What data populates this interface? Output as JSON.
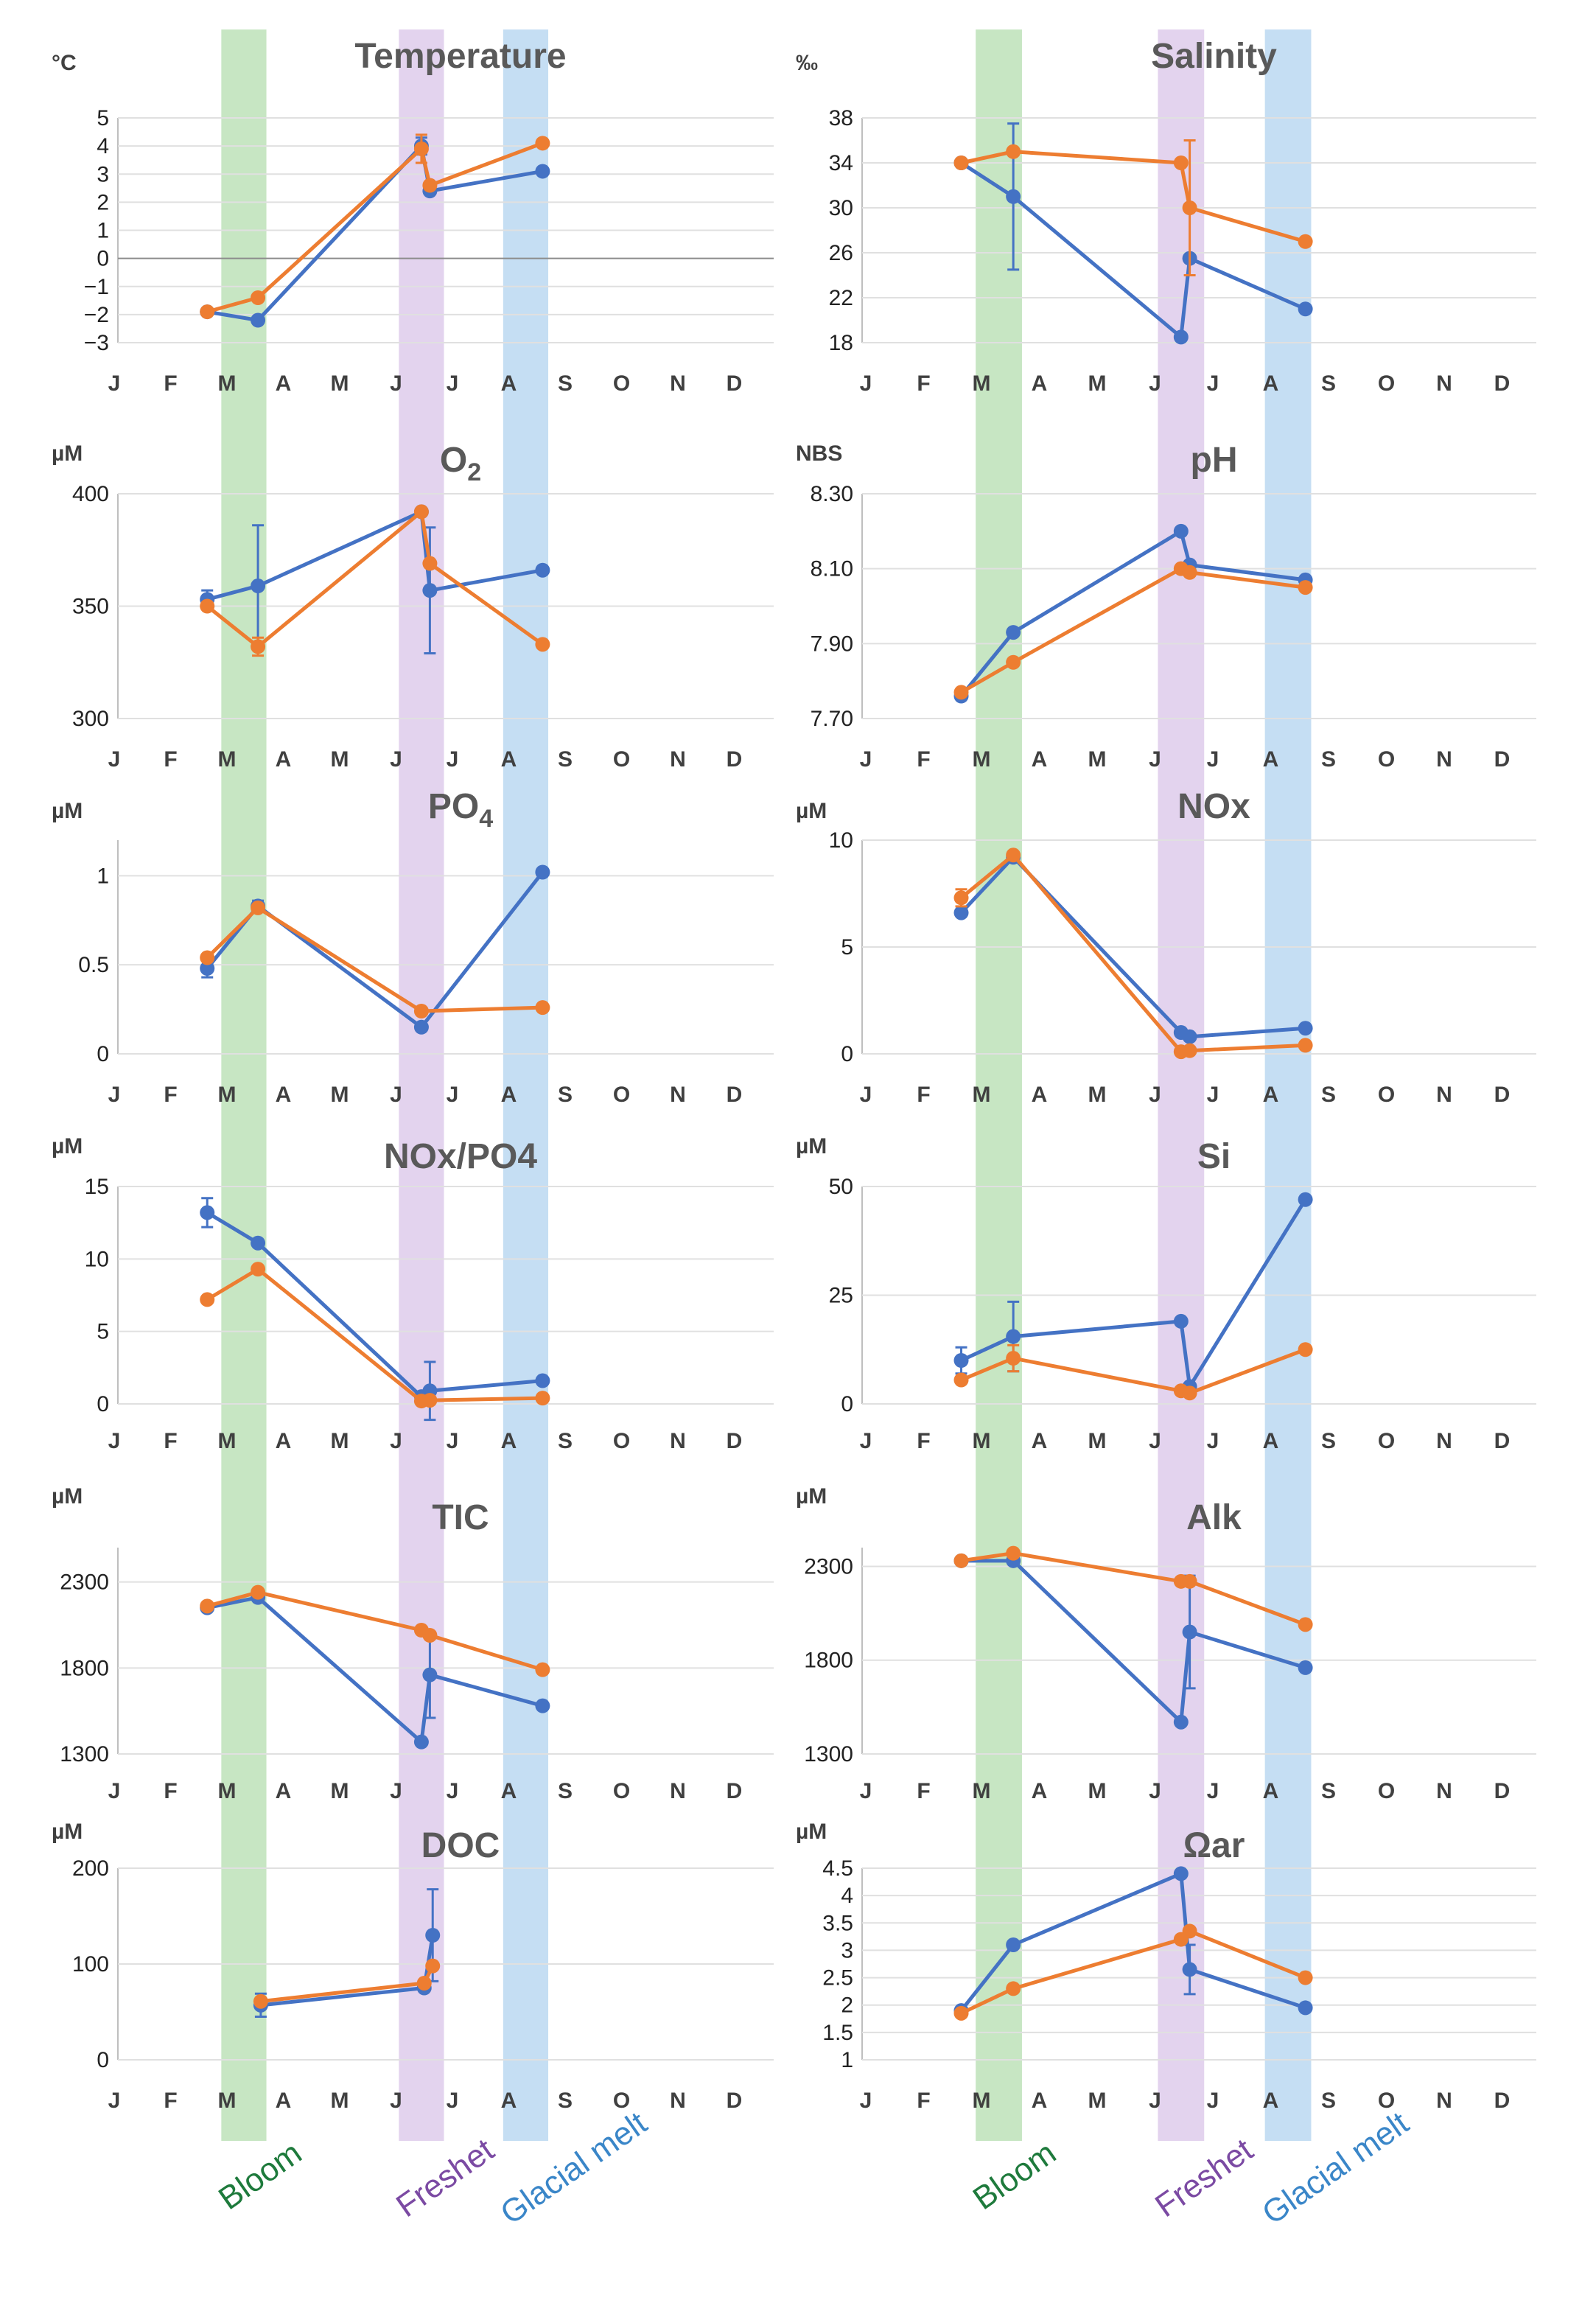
{
  "months": [
    "J",
    "F",
    "M",
    "A",
    "M",
    "J",
    "J",
    "A",
    "S",
    "O",
    "N",
    "D"
  ],
  "seasons": [
    {
      "name": "Bloom",
      "color": "#1e7a3c",
      "band": "#c7e6c3",
      "month_start": 1.9,
      "month_end": 2.7
    },
    {
      "name": "Freshet",
      "color": "#7b4aa3",
      "band": "#e3d3ee",
      "month_start": 5.05,
      "month_end": 5.85
    },
    {
      "name": "Glacial melt",
      "color": "#3a86c8",
      "band": "#c5def3",
      "month_start": 6.9,
      "month_end": 7.7
    }
  ],
  "series_colors": {
    "blue": "#4472c4",
    "orange": "#ed7d31",
    "teal": "#1f8a8a"
  },
  "chart_data": [
    {
      "type": "line",
      "title": "Temperature",
      "unit": "°C",
      "ylim": [
        -3,
        5
      ],
      "yticks": [
        -3,
        -2,
        -1,
        0,
        1,
        2,
        3,
        4,
        5
      ],
      "ytick_labels": [
        "−3",
        "−2",
        "−1",
        "0",
        "1",
        "2",
        "3",
        "4",
        "5"
      ],
      "zero_line": true,
      "series": [
        {
          "name": "blue",
          "x": [
            1.65,
            2.55,
            5.45,
            5.6,
            7.6
          ],
          "values": [
            -1.9,
            -2.2,
            4.0,
            2.4,
            3.1
          ],
          "errors": [
            0,
            0,
            0.3,
            0,
            0
          ]
        },
        {
          "name": "orange",
          "x": [
            1.65,
            2.55,
            5.45,
            5.6,
            7.6
          ],
          "values": [
            -1.9,
            -1.4,
            3.9,
            2.6,
            4.1
          ],
          "errors": [
            0,
            0,
            0.5,
            0,
            0
          ]
        }
      ]
    },
    {
      "type": "line",
      "title": "Salinity",
      "unit": "‰",
      "ylim": [
        18,
        38
      ],
      "yticks": [
        18,
        22,
        26,
        30,
        34,
        38
      ],
      "ytick_labels": [
        "18",
        "22",
        "26",
        "30",
        "34",
        "38"
      ],
      "series": [
        {
          "name": "blue",
          "x": [
            1.65,
            2.55,
            5.45,
            5.6,
            7.6
          ],
          "values": [
            34,
            31,
            18.5,
            25.5,
            21
          ],
          "errors": [
            0,
            6.5,
            0,
            0,
            0
          ]
        },
        {
          "name": "orange",
          "x": [
            1.65,
            2.55,
            5.45,
            5.6,
            7.6
          ],
          "values": [
            34,
            35,
            34,
            30,
            27
          ],
          "errors": [
            0,
            0,
            0,
            6,
            0
          ]
        }
      ]
    },
    {
      "type": "line",
      "title": "O2",
      "subscript": "2",
      "unit": "µM",
      "ylim": [
        300,
        400
      ],
      "yticks": [
        300,
        350,
        400
      ],
      "ytick_labels": [
        "300",
        "350",
        "400"
      ],
      "series": [
        {
          "name": "blue",
          "x": [
            1.65,
            2.55,
            5.45,
            5.6,
            7.6
          ],
          "values": [
            353,
            359,
            392,
            357,
            366
          ],
          "errors": [
            4,
            27,
            0,
            28,
            0
          ]
        },
        {
          "name": "orange",
          "x": [
            1.65,
            2.55,
            5.45,
            5.6,
            7.6
          ],
          "values": [
            350,
            332,
            392,
            369,
            333
          ],
          "errors": [
            0,
            4,
            0,
            0,
            0
          ]
        }
      ]
    },
    {
      "type": "line",
      "title": "pH",
      "unit": "NBS",
      "ylim": [
        7.7,
        8.3
      ],
      "yticks": [
        7.7,
        7.9,
        8.1,
        8.3
      ],
      "ytick_labels": [
        "7.70",
        "7.90",
        "8.10",
        "8.30"
      ],
      "series": [
        {
          "name": "blue",
          "x": [
            1.65,
            2.55,
            5.45,
            5.6,
            7.6
          ],
          "values": [
            7.76,
            7.93,
            8.2,
            8.11,
            8.07
          ],
          "errors": [
            0,
            0,
            0,
            0,
            0
          ]
        },
        {
          "name": "orange",
          "x": [
            1.65,
            2.55,
            5.45,
            5.6,
            7.6
          ],
          "values": [
            7.77,
            7.85,
            8.1,
            8.09,
            8.05
          ],
          "errors": [
            0,
            0,
            0,
            0,
            0
          ]
        }
      ]
    },
    {
      "type": "line",
      "title": "PO4",
      "subscript": "4",
      "unit": "µM",
      "ylim": [
        0,
        1.2
      ],
      "yticks": [
        0,
        0.5,
        1
      ],
      "ytick_labels": [
        "0",
        "0.5",
        "1"
      ],
      "series": [
        {
          "name": "blue",
          "x": [
            1.65,
            2.55,
            5.45,
            7.6
          ],
          "values": [
            0.48,
            0.83,
            0.15,
            1.02
          ],
          "errors": [
            0.05,
            0.03,
            0,
            0
          ]
        },
        {
          "name": "orange",
          "x": [
            1.65,
            2.55,
            5.45,
            7.6
          ],
          "values": [
            0.54,
            0.82,
            0.24,
            0.26
          ],
          "errors": [
            0,
            0,
            0,
            0
          ]
        }
      ]
    },
    {
      "type": "line",
      "title": "NOx",
      "unit": "µM",
      "ylim": [
        0,
        10
      ],
      "yticks": [
        0,
        5,
        10
      ],
      "ytick_labels": [
        "0",
        "5",
        "10"
      ],
      "series": [
        {
          "name": "blue",
          "x": [
            1.65,
            2.55,
            5.45,
            5.6,
            7.6
          ],
          "values": [
            6.6,
            9.2,
            1.0,
            0.8,
            1.2
          ],
          "errors": [
            0,
            0,
            0,
            0,
            0
          ]
        },
        {
          "name": "orange",
          "x": [
            1.65,
            2.55,
            5.45,
            5.6,
            7.6
          ],
          "values": [
            7.3,
            9.3,
            0.1,
            0.15,
            0.4
          ],
          "errors": [
            0.4,
            0,
            0,
            0,
            0
          ]
        }
      ]
    },
    {
      "type": "line",
      "title": "NOx/PO4",
      "unit": "µM",
      "ylim": [
        0,
        15
      ],
      "yticks": [
        0,
        5,
        10,
        15
      ],
      "ytick_labels": [
        "0",
        "5",
        "10",
        "15"
      ],
      "series": [
        {
          "name": "blue",
          "x": [
            1.65,
            2.55,
            5.45,
            5.6,
            7.6
          ],
          "values": [
            13.2,
            11.1,
            0.5,
            0.9,
            1.6
          ],
          "errors": [
            1.0,
            0,
            0,
            2.0,
            0
          ]
        },
        {
          "name": "orange",
          "x": [
            1.65,
            2.55,
            5.45,
            5.6,
            7.6
          ],
          "values": [
            7.2,
            9.3,
            0.2,
            0.25,
            0.4
          ],
          "errors": [
            0,
            0,
            0,
            0,
            0
          ]
        }
      ]
    },
    {
      "type": "line",
      "title": "Si",
      "unit": "µM",
      "ylim": [
        0,
        50
      ],
      "yticks": [
        0,
        25,
        50
      ],
      "ytick_labels": [
        "0",
        "25",
        "50"
      ],
      "series": [
        {
          "name": "blue",
          "x": [
            1.65,
            2.55,
            5.45,
            5.6,
            7.6
          ],
          "values": [
            10,
            15.5,
            19,
            4,
            47
          ],
          "errors": [
            3,
            8,
            0,
            0,
            0
          ]
        },
        {
          "name": "orange",
          "x": [
            1.65,
            2.55,
            5.45,
            5.6,
            7.6
          ],
          "values": [
            5.5,
            10.5,
            3,
            2.5,
            12.5
          ],
          "errors": [
            0,
            3,
            0,
            0,
            0
          ]
        }
      ]
    },
    {
      "type": "line",
      "title": "TIC",
      "unit": "µM",
      "ylim": [
        1300,
        2500
      ],
      "yticks": [
        1300,
        1800,
        2300
      ],
      "ytick_labels": [
        "1300",
        "1800",
        "2300"
      ],
      "series": [
        {
          "name": "blue",
          "x": [
            1.65,
            2.55,
            5.45,
            5.6,
            7.6
          ],
          "values": [
            2150,
            2210,
            1370,
            1760,
            1580
          ],
          "errors": [
            0,
            0,
            0,
            250,
            0
          ]
        },
        {
          "name": "orange",
          "x": [
            1.65,
            2.55,
            5.45,
            5.6,
            7.6
          ],
          "values": [
            2160,
            2240,
            2020,
            1990,
            1790
          ],
          "errors": [
            0,
            0,
            0,
            0,
            0
          ]
        }
      ]
    },
    {
      "type": "line",
      "title": "Alk",
      "unit": "µM",
      "ylim": [
        1300,
        2400
      ],
      "yticks": [
        1300,
        1800,
        2300
      ],
      "ytick_labels": [
        "1300",
        "1800",
        "2300"
      ],
      "series": [
        {
          "name": "blue",
          "x": [
            1.65,
            2.55,
            5.45,
            5.6,
            7.6
          ],
          "values": [
            2330,
            2330,
            1470,
            1950,
            1760
          ],
          "errors": [
            0,
            0,
            0,
            300,
            0
          ]
        },
        {
          "name": "orange",
          "x": [
            1.65,
            2.55,
            5.45,
            5.6,
            7.6
          ],
          "values": [
            2330,
            2370,
            2220,
            2220,
            1990
          ],
          "errors": [
            0,
            0,
            0,
            0,
            0
          ]
        }
      ]
    },
    {
      "type": "line",
      "title": "DOC",
      "unit": "µM",
      "ylim": [
        0,
        200
      ],
      "yticks": [
        0,
        100,
        200
      ],
      "ytick_labels": [
        "0",
        "100",
        "200"
      ],
      "series": [
        {
          "name": "blue",
          "x": [
            2.6,
            5.5,
            5.65
          ],
          "values": [
            57,
            75,
            130
          ],
          "errors": [
            12,
            0,
            48
          ]
        },
        {
          "name": "orange",
          "x": [
            2.6,
            5.5,
            5.65
          ],
          "values": [
            61,
            80,
            98
          ],
          "errors": [
            0,
            0,
            0
          ]
        }
      ]
    },
    {
      "type": "line",
      "title": "Ωar",
      "unit": "µM",
      "ylim": [
        1,
        4.5
      ],
      "yticks": [
        1,
        1.5,
        2,
        2.5,
        3,
        3.5,
        4,
        4.5
      ],
      "ytick_labels": [
        "1",
        "1.5",
        "2",
        "2.5",
        "3",
        "3.5",
        "4",
        "4.5"
      ],
      "series": [
        {
          "name": "blue",
          "x": [
            1.65,
            2.55,
            5.45,
            5.6,
            7.6
          ],
          "values": [
            1.9,
            3.1,
            4.4,
            2.65,
            1.95
          ],
          "errors": [
            0,
            0,
            0,
            0.45,
            0
          ]
        },
        {
          "name": "orange",
          "x": [
            1.65,
            2.55,
            5.45,
            5.6,
            7.6
          ],
          "values": [
            1.85,
            2.3,
            3.2,
            3.35,
            2.5
          ],
          "errors": [
            0,
            0,
            0,
            0,
            0
          ]
        }
      ]
    }
  ]
}
